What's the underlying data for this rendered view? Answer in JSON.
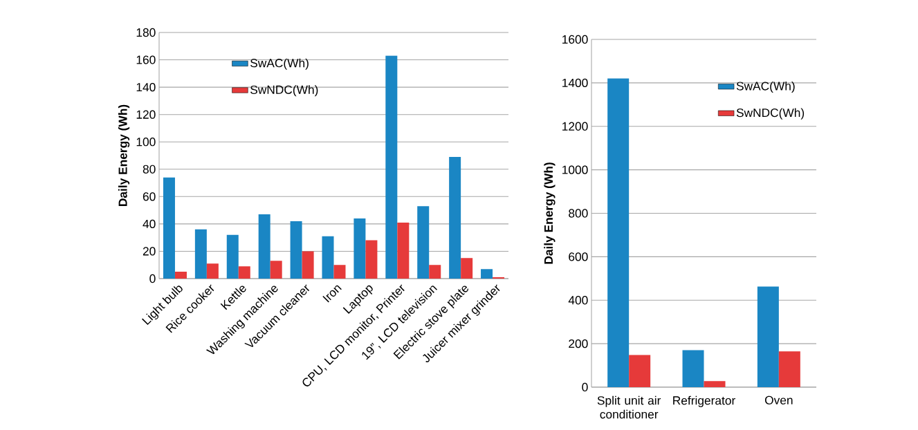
{
  "chart_data": [
    {
      "type": "bar",
      "ylabel": "Daily Energy (Wh)",
      "categories": [
        "Light bulb",
        "Rice cooker",
        "Kettle",
        "Washing machine",
        "Vacuum cleaner",
        "Iron",
        "Laptop",
        "CPU, LCD monitor, Printer",
        "19”, LCD television",
        "Electric stove plate",
        "Juicer mixer grinder"
      ],
      "series": [
        {
          "name": "SwAC(Wh)",
          "color": "#1a86c4",
          "values": [
            74,
            36,
            32,
            47,
            42,
            31,
            44,
            163,
            53,
            89,
            7
          ]
        },
        {
          "name": "SwNDC(Wh)",
          "color": "#e63a3a",
          "values": [
            5,
            11,
            9,
            13,
            20,
            10,
            28,
            41,
            10,
            15,
            1
          ]
        }
      ],
      "ylim": [
        0,
        180
      ],
      "yticks": [
        0,
        20,
        40,
        60,
        80,
        100,
        120,
        140,
        160,
        180
      ],
      "grid": "y",
      "legend": "top"
    },
    {
      "type": "bar",
      "ylabel": "Daily Energy (Wh)",
      "categories": [
        "Split unit air conditioner",
        "Refrigerator",
        "Oven"
      ],
      "series": [
        {
          "name": "SwAC(Wh)",
          "color": "#1a86c4",
          "values": [
            1420,
            170,
            463
          ]
        },
        {
          "name": "SwNDC(Wh)",
          "color": "#e63a3a",
          "values": [
            148,
            28,
            165
          ]
        }
      ],
      "ylim": [
        0,
        1600
      ],
      "yticks": [
        0,
        200,
        400,
        600,
        800,
        1000,
        1200,
        1400,
        1600
      ],
      "grid": "y",
      "legend": "top right"
    }
  ]
}
